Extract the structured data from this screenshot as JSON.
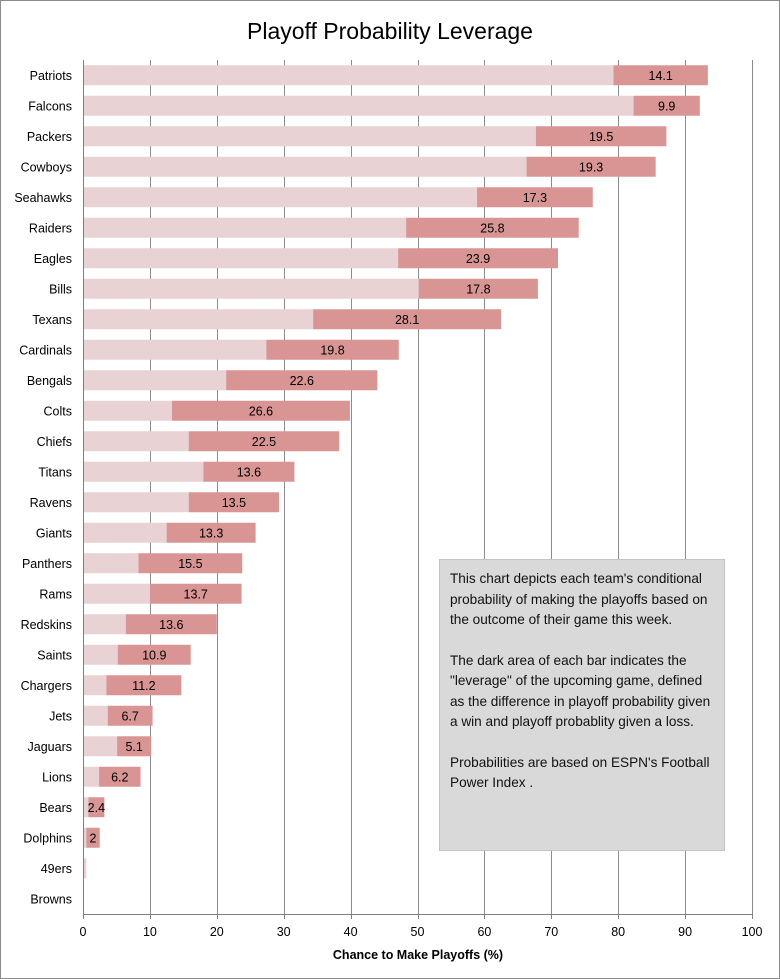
{
  "chart_data": {
    "type": "bar",
    "orientation": "horizontal",
    "stacked": true,
    "title": "Playoff Probability  Leverage",
    "xlabel": "Chance to Make Playoffs (%)",
    "ylabel": "",
    "xlim": [
      0,
      100
    ],
    "xticks": [
      0,
      10,
      20,
      30,
      40,
      50,
      60,
      70,
      80,
      90,
      100
    ],
    "grid": "vertical",
    "legend": "none",
    "categories": [
      "Patriots",
      "Falcons",
      "Packers",
      "Cowboys",
      "Seahawks",
      "Raiders",
      "Eagles",
      "Bills",
      "Texans",
      "Cardinals",
      "Bengals",
      "Colts",
      "Chiefs",
      "Titans",
      "Ravens",
      "Giants",
      "Panthers",
      "Rams",
      "Redskins",
      "Saints",
      "Chargers",
      "Jets",
      "Jaguars",
      "Lions",
      "Bears",
      "Dolphins",
      "49ers",
      "Browns"
    ],
    "series": [
      {
        "name": "Playoff probability given a loss",
        "color": "#e8d2d3",
        "values": [
          79.3,
          82.3,
          67.7,
          66.3,
          58.9,
          48.3,
          47.1,
          50.2,
          34.4,
          27.4,
          21.4,
          13.3,
          15.8,
          18.0,
          15.8,
          12.5,
          8.3,
          10.0,
          6.4,
          5.2,
          3.5,
          3.7,
          5.1,
          2.4,
          0.8,
          0.5,
          0.5,
          0.0
        ]
      },
      {
        "name": "Leverage (win minus loss)",
        "color": "#d99594",
        "values": [
          14.1,
          9.9,
          19.5,
          19.3,
          17.3,
          25.8,
          23.9,
          17.8,
          28.1,
          19.8,
          22.6,
          26.6,
          22.5,
          13.6,
          13.5,
          13.3,
          15.5,
          13.7,
          13.6,
          10.9,
          11.2,
          6.7,
          5.1,
          6.2,
          2.4,
          2.0,
          null,
          null
        ],
        "labels": [
          "14.1",
          "9.9",
          "19.5",
          "19.3",
          "17.3",
          "25.8",
          "23.9",
          "17.8",
          "28.1",
          "19.8",
          "22.6",
          "26.6",
          "22.5",
          "13.6",
          "13.5",
          "13.3",
          "15.5",
          "13.7",
          "13.6",
          "10.9",
          "11.2",
          "6.7",
          "5.1",
          "6.2",
          "2.4",
          "2",
          "",
          ""
        ]
      }
    ]
  },
  "note": {
    "p1": "This chart depicts each team's conditional probability of making the playoffs based on the outcome of their game this week.",
    "p2": "The dark area of each bar indicates the \"leverage\" of the upcoming game, defined as the difference in playoff probability given a win and playoff probablity given a loss.",
    "p3": "Probabilities are based on ESPN's Football Power Index ."
  }
}
